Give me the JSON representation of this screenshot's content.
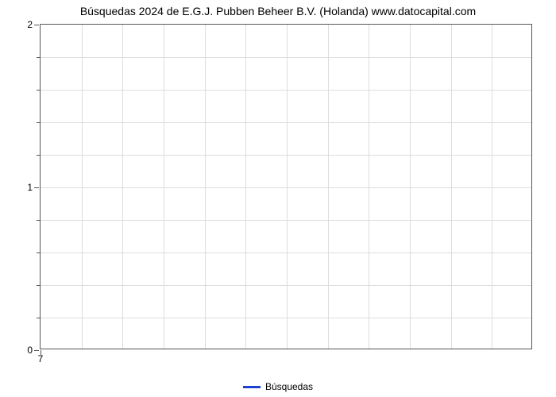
{
  "chart": {
    "type": "line",
    "title": "Búsquedas 2024 de E.G.J. Pubben Beheer B.V. (Holanda) www.datocapital.com",
    "title_fontsize": 14,
    "background_color": "#ffffff",
    "grid_color": "#dddddd",
    "border_color": "#555555",
    "ylim": [
      0,
      2
    ],
    "ytick_major": [
      0,
      1,
      2
    ],
    "ytick_minor_count_between": 4,
    "xlim": [
      7,
      7
    ],
    "xticks": [
      7
    ],
    "x_grid_count": 12,
    "y_grid_rows": 10,
    "series": [
      {
        "name": "Búsquedas",
        "color": "#2040d0",
        "data": []
      }
    ],
    "legend": {
      "label": "Búsquedas",
      "swatch_color": "#2040d0",
      "position": "bottom-center"
    },
    "label_fontsize": 12
  }
}
